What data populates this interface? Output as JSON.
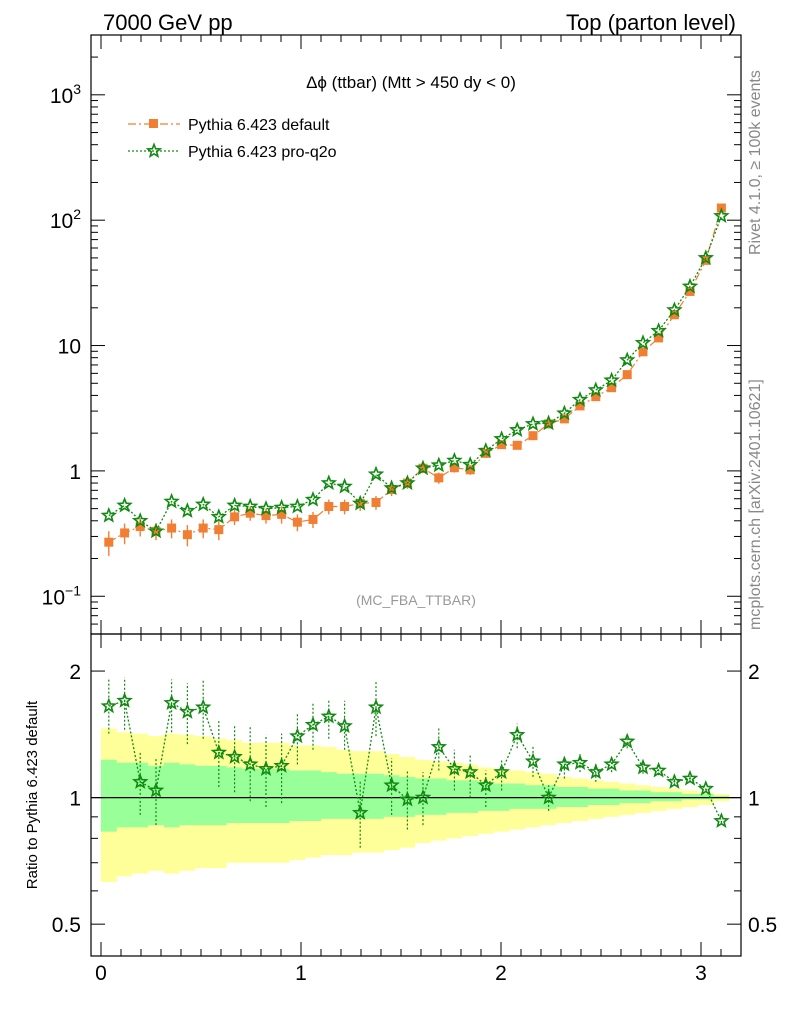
{
  "header": {
    "left": "7000 GeV pp",
    "right": "Top (parton level)"
  },
  "side_labels": {
    "rivet": "Rivet 4.1.0, ≥ 100k events",
    "mcplots": "mcplots.cern.ch [arXiv:2401.10621]"
  },
  "colors": {
    "default": "#f07f33",
    "proq2o": "#118a11",
    "band_outer": "#ffff99",
    "band_inner": "#99ff99"
  },
  "chart_data": [
    {
      "type": "line",
      "title": "Δϕ (ttbar) (Mtt > 450 dy < 0)",
      "watermark": "(MC_FBA_TTBAR)",
      "xlabel": "",
      "ylabel": "",
      "yscale": "log",
      "ylim": [
        0.05,
        3000
      ],
      "xlim": [
        -0.05,
        3.2
      ],
      "yticks": [
        {
          "value": 1000,
          "base": "10",
          "exp": "3"
        },
        {
          "value": 100,
          "base": "10",
          "exp": "2"
        },
        {
          "value": 10,
          "base": "10",
          "exp": ""
        },
        {
          "value": 1,
          "base": "1",
          "exp": ""
        },
        {
          "value": 0.1,
          "base": "10",
          "exp": "−1"
        }
      ],
      "x": [
        0.039,
        0.118,
        0.196,
        0.275,
        0.353,
        0.432,
        0.511,
        0.589,
        0.668,
        0.746,
        0.825,
        0.903,
        0.982,
        1.06,
        1.139,
        1.218,
        1.296,
        1.375,
        1.453,
        1.532,
        1.61,
        1.689,
        1.767,
        1.846,
        1.924,
        2.003,
        2.081,
        2.16,
        2.238,
        2.317,
        2.395,
        2.474,
        2.553,
        2.631,
        2.71,
        2.788,
        2.867,
        2.945,
        3.024,
        3.102
      ],
      "series": [
        {
          "name": "Pythia 6.423 default",
          "style": "dashdot",
          "marker": "square",
          "values": [
            0.27,
            0.32,
            0.36,
            0.33,
            0.35,
            0.31,
            0.35,
            0.34,
            0.43,
            0.46,
            0.44,
            0.45,
            0.39,
            0.41,
            0.52,
            0.52,
            0.55,
            0.56,
            0.71,
            0.8,
            1.05,
            0.88,
            1.06,
            1.02,
            1.38,
            1.62,
            1.6,
            1.91,
            2.37,
            2.6,
            3.3,
            3.91,
            4.61,
            5.86,
            8.91,
            11.5,
            17.6,
            27.0,
            47.8,
            125
          ],
          "errors": [
            0.06,
            0.06,
            0.06,
            0.05,
            0.06,
            0.06,
            0.06,
            0.06,
            0.06,
            0.06,
            0.06,
            0.07,
            0.06,
            0.06,
            0.07,
            0.07,
            0.07,
            0.07,
            0.08,
            0.08,
            0.09,
            0.09,
            0.09,
            0.09,
            0.1,
            0.1,
            0.1,
            0.1,
            0.12,
            0.13,
            0.15,
            0.16,
            0.2,
            0.2,
            0.3,
            0.4,
            0.5,
            0.8,
            1.2,
            2.5
          ]
        },
        {
          "name": "Pythia 6.423 pro-q2o",
          "style": "dotted",
          "marker": "star",
          "values": [
            0.44,
            0.53,
            0.4,
            0.33,
            0.57,
            0.48,
            0.54,
            0.43,
            0.53,
            0.52,
            0.5,
            0.51,
            0.52,
            0.59,
            0.8,
            0.75,
            0.55,
            0.94,
            0.73,
            0.8,
            1.05,
            1.11,
            1.21,
            1.12,
            1.45,
            1.8,
            2.12,
            2.37,
            2.4,
            2.88,
            3.7,
            4.41,
            5.28,
            7.65,
            10.5,
            13.1,
            19.2,
            29.6,
            50.0,
            108
          ]
        }
      ]
    },
    {
      "type": "line",
      "title": "",
      "xlabel": "",
      "ylabel": "Ratio to Pythia 6.423 default",
      "yscale": "log",
      "ylim": [
        0.42,
        2.45
      ],
      "xlim": [
        -0.05,
        3.2
      ],
      "yticks_left": [
        "2",
        "1",
        "0.5"
      ],
      "yticks_right": [
        "2",
        "1",
        "0.5"
      ],
      "ytick_values": [
        2,
        1,
        0.5
      ],
      "xticks": [
        "0",
        "1",
        "2",
        "3"
      ],
      "xtick_values": [
        0,
        1,
        2,
        3
      ],
      "x": [
        0.039,
        0.118,
        0.196,
        0.275,
        0.353,
        0.432,
        0.511,
        0.589,
        0.668,
        0.746,
        0.825,
        0.903,
        0.982,
        1.06,
        1.139,
        1.218,
        1.296,
        1.375,
        1.453,
        1.532,
        1.61,
        1.689,
        1.767,
        1.846,
        1.924,
        2.003,
        2.081,
        2.16,
        2.238,
        2.317,
        2.395,
        2.474,
        2.553,
        2.631,
        2.71,
        2.788,
        2.867,
        2.945,
        3.024,
        3.102
      ],
      "series": [
        {
          "name": "Pythia 6.423 pro-q2o",
          "values": [
            1.65,
            1.7,
            1.09,
            1.04,
            1.68,
            1.6,
            1.64,
            1.28,
            1.25,
            1.2,
            1.17,
            1.19,
            1.4,
            1.49,
            1.56,
            1.48,
            0.92,
            1.64,
            1.07,
            0.99,
            1.0,
            1.32,
            1.17,
            1.15,
            1.07,
            1.15,
            1.41,
            1.22,
            1.0,
            1.2,
            1.21,
            1.15,
            1.2,
            1.36,
            1.18,
            1.16,
            1.09,
            1.11,
            1.05,
            0.88
          ],
          "err_hi": [
            1.91,
            1.93,
            1.29,
            1.24,
            1.91,
            1.87,
            1.91,
            1.52,
            1.48,
            1.48,
            1.41,
            1.42,
            1.58,
            1.69,
            1.7,
            1.7,
            1.1,
            1.89,
            1.24,
            1.16,
            1.15,
            1.46,
            1.3,
            1.27,
            1.16,
            1.23,
            1.5,
            1.33,
            1.07,
            1.25,
            1.27,
            1.21,
            1.25,
            1.4,
            1.22,
            1.19,
            1.11,
            1.13,
            1.06,
            0.89
          ],
          "err_lo": [
            1.42,
            1.45,
            0.91,
            0.86,
            1.43,
            1.34,
            1.38,
            1.06,
            1.03,
            0.98,
            0.95,
            0.97,
            1.2,
            1.3,
            1.38,
            1.3,
            0.76,
            1.4,
            0.91,
            0.84,
            0.86,
            1.16,
            1.04,
            1.0,
            0.95,
            1.04,
            1.31,
            1.12,
            0.93,
            1.11,
            1.15,
            1.09,
            1.15,
            1.31,
            1.14,
            1.13,
            1.07,
            1.09,
            1.04,
            0.87
          ]
        }
      ],
      "band_inner": {
        "hi": [
          1.23,
          1.21,
          1.21,
          1.19,
          1.21,
          1.2,
          1.19,
          1.19,
          1.18,
          1.17,
          1.17,
          1.17,
          1.16,
          1.16,
          1.15,
          1.14,
          1.14,
          1.14,
          1.13,
          1.12,
          1.11,
          1.11,
          1.1,
          1.1,
          1.09,
          1.08,
          1.08,
          1.07,
          1.07,
          1.06,
          1.06,
          1.05,
          1.05,
          1.04,
          1.04,
          1.03,
          1.03,
          1.02,
          1.02,
          1.01
        ],
        "lo": [
          0.83,
          0.85,
          0.85,
          0.86,
          0.85,
          0.86,
          0.86,
          0.86,
          0.87,
          0.87,
          0.87,
          0.87,
          0.88,
          0.88,
          0.89,
          0.89,
          0.89,
          0.89,
          0.9,
          0.9,
          0.91,
          0.91,
          0.92,
          0.92,
          0.93,
          0.93,
          0.94,
          0.94,
          0.94,
          0.95,
          0.95,
          0.96,
          0.96,
          0.97,
          0.97,
          0.98,
          0.98,
          0.99,
          0.99,
          0.995
        ]
      },
      "band_outer": {
        "hi": [
          1.46,
          1.43,
          1.42,
          1.4,
          1.42,
          1.41,
          1.4,
          1.38,
          1.37,
          1.35,
          1.35,
          1.35,
          1.33,
          1.33,
          1.32,
          1.3,
          1.29,
          1.29,
          1.27,
          1.25,
          1.23,
          1.22,
          1.21,
          1.2,
          1.18,
          1.17,
          1.16,
          1.15,
          1.14,
          1.12,
          1.11,
          1.1,
          1.09,
          1.08,
          1.07,
          1.06,
          1.05,
          1.04,
          1.03,
          1.02
        ],
        "lo": [
          0.63,
          0.65,
          0.66,
          0.67,
          0.66,
          0.67,
          0.68,
          0.68,
          0.7,
          0.7,
          0.7,
          0.7,
          0.71,
          0.72,
          0.73,
          0.73,
          0.74,
          0.74,
          0.75,
          0.76,
          0.78,
          0.79,
          0.8,
          0.81,
          0.82,
          0.83,
          0.84,
          0.85,
          0.86,
          0.87,
          0.88,
          0.89,
          0.9,
          0.91,
          0.92,
          0.93,
          0.94,
          0.95,
          0.96,
          0.98
        ]
      }
    }
  ]
}
